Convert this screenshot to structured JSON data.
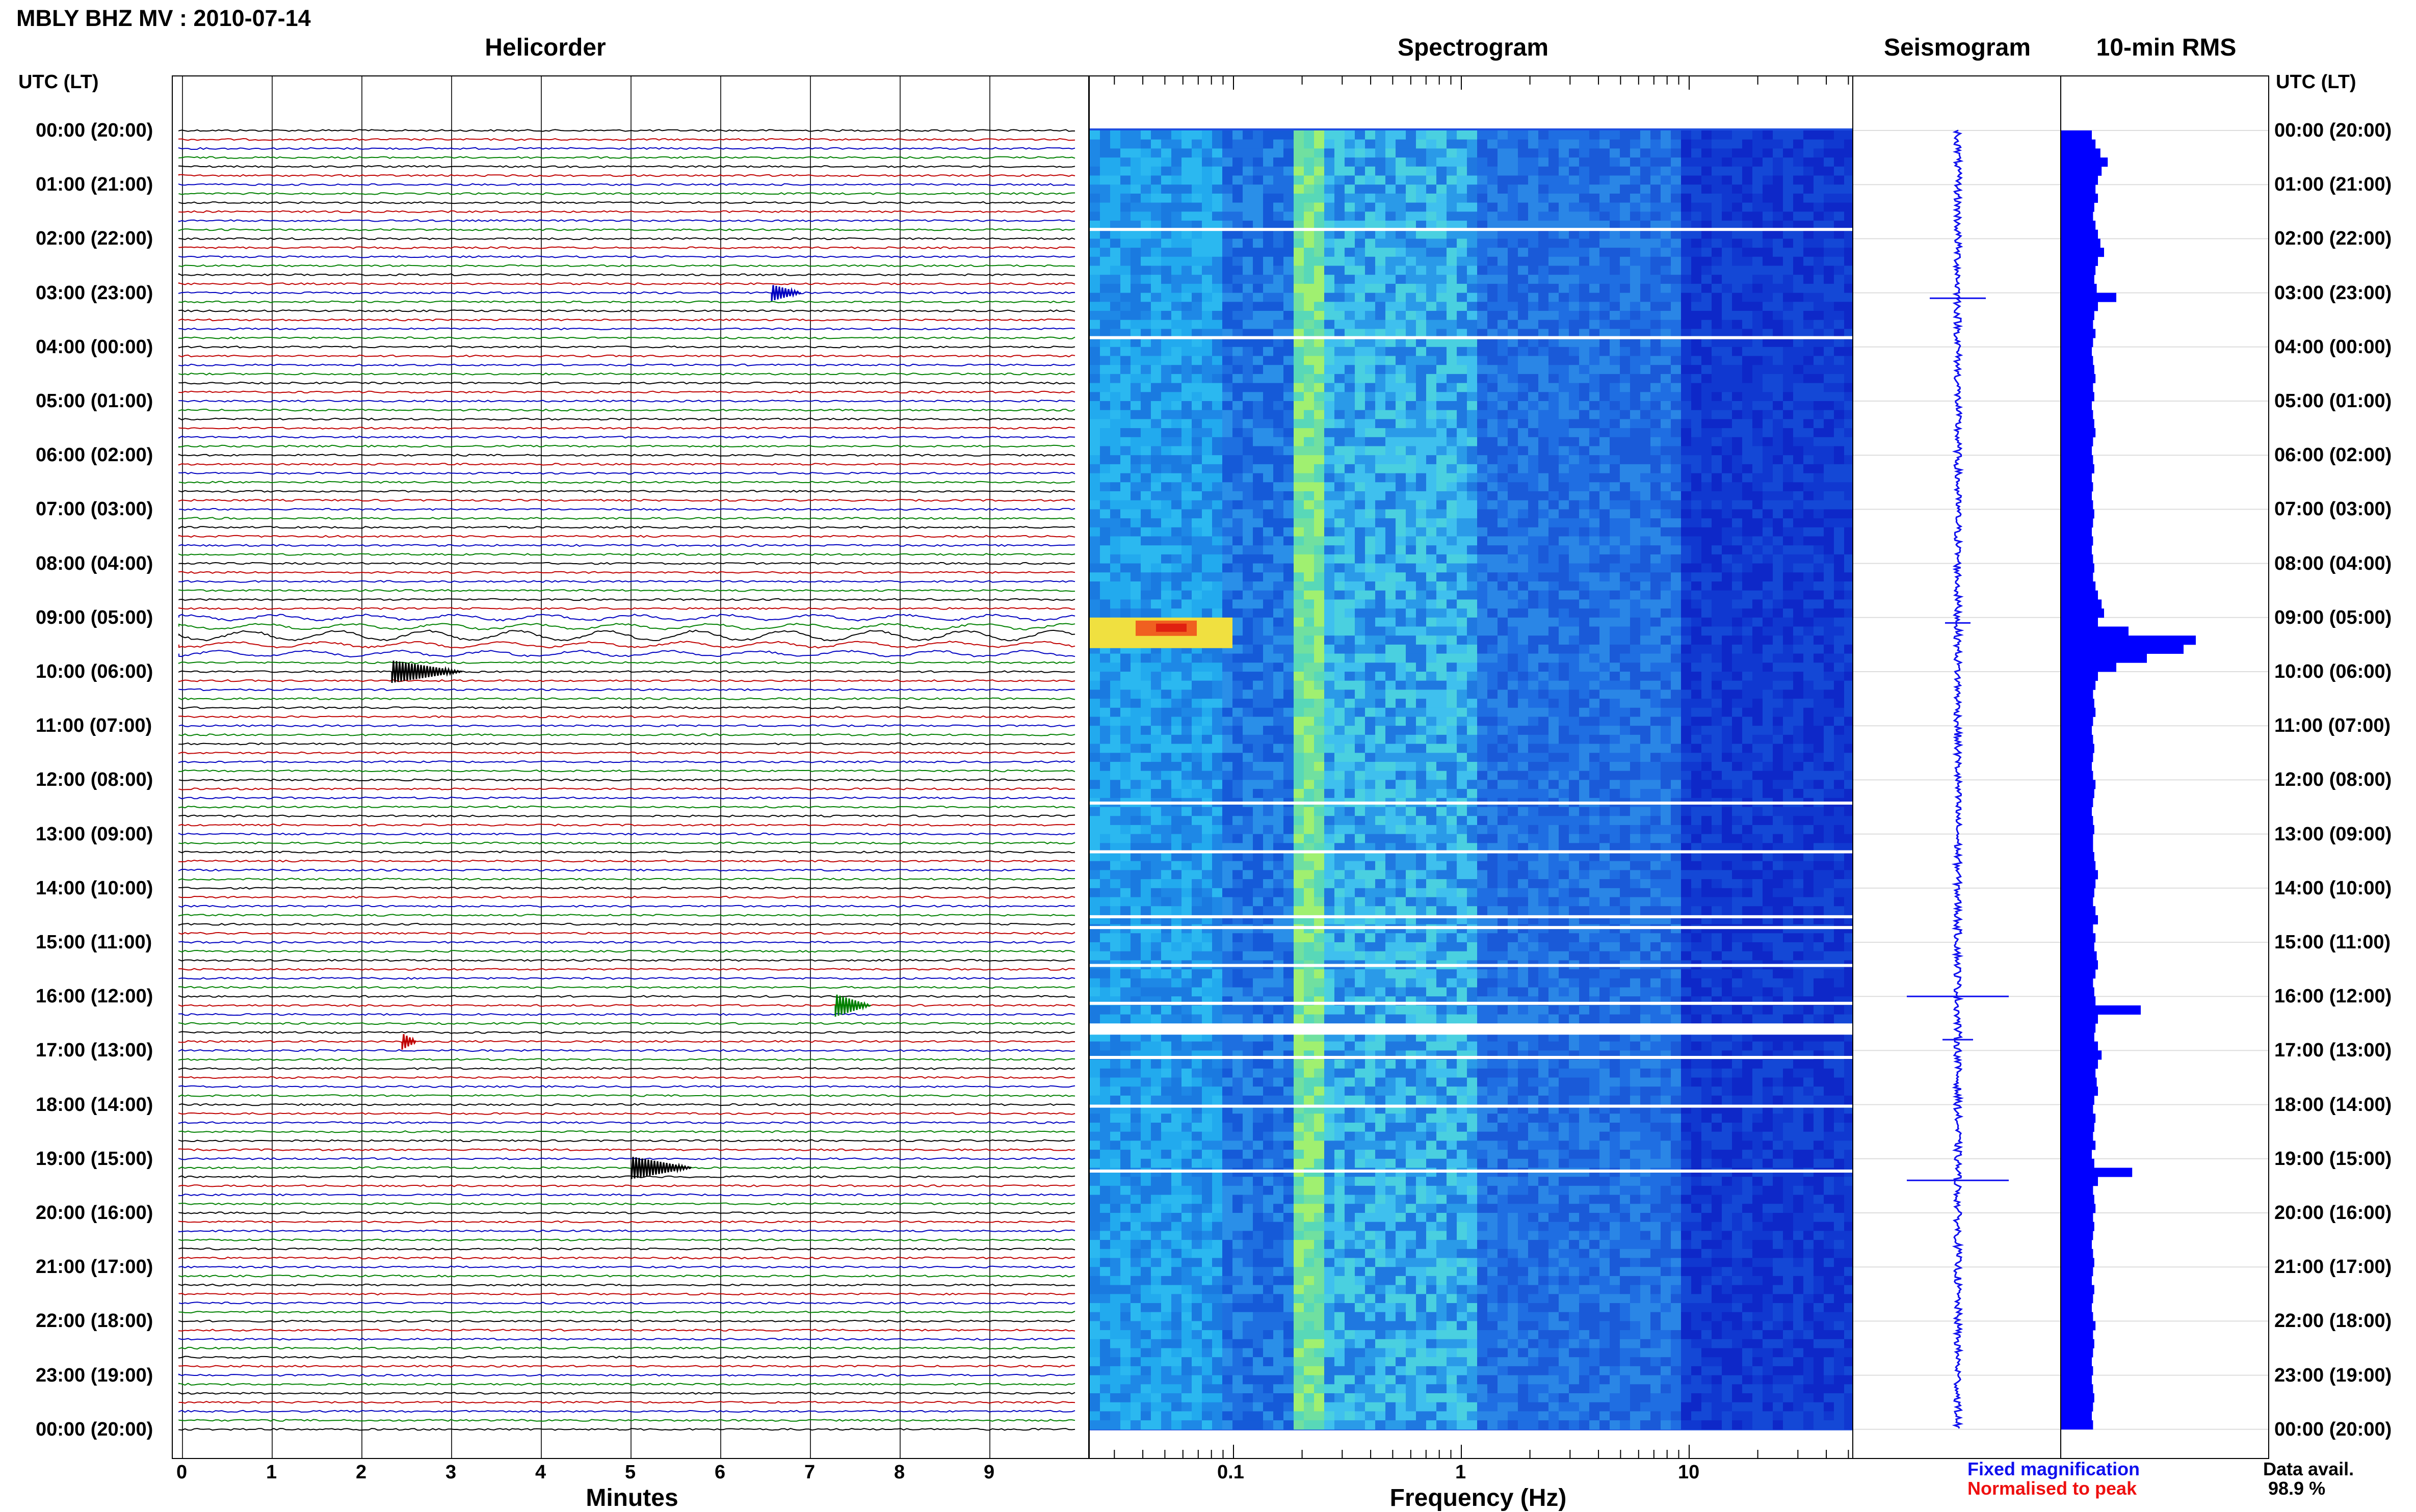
{
  "header": {
    "title": "MBLY BHZ MV : 2010-07-14"
  },
  "panels": {
    "helicorder": "Helicorder",
    "spectrogram": "Spectrogram",
    "seismogram": "Seismogram",
    "rms": "10-min RMS"
  },
  "axis": {
    "utc_label": "UTC (LT)",
    "time_labels": [
      "00:00 (20:00)",
      "01:00 (21:00)",
      "02:00 (22:00)",
      "03:00 (23:00)",
      "04:00 (00:00)",
      "05:00 (01:00)",
      "06:00 (02:00)",
      "07:00 (03:00)",
      "08:00 (04:00)",
      "09:00 (05:00)",
      "10:00 (06:00)",
      "11:00 (07:00)",
      "12:00 (08:00)",
      "13:00 (09:00)",
      "14:00 (10:00)",
      "15:00 (11:00)",
      "16:00 (12:00)",
      "17:00 (13:00)",
      "18:00 (14:00)",
      "19:00 (15:00)",
      "20:00 (16:00)",
      "21:00 (17:00)",
      "22:00 (18:00)",
      "23:00 (19:00)",
      "00:00 (20:00)"
    ],
    "minutes_ticks": [
      "0",
      "1",
      "2",
      "3",
      "4",
      "5",
      "6",
      "7",
      "8",
      "9"
    ],
    "minutes_label": "Minutes",
    "freq_ticks": [
      "0.1",
      "1",
      "10"
    ],
    "freq_label": "Frequency (Hz)"
  },
  "legend": {
    "fixed": "Fixed magnification",
    "normalised": "Normalised to peak",
    "fixed_color": "#1010ee",
    "normalised_color": "#ee1010"
  },
  "data_avail": {
    "label": "Data avail.",
    "value": "98.9 %"
  },
  "colors": {
    "trace_cycle": [
      "#000000",
      "#c00000",
      "#0000c0",
      "#008000"
    ],
    "rms_bar": "#0000ff",
    "seis": "#1010ee"
  },
  "events": [
    {
      "time_utc": "03:00",
      "minute": 6.7,
      "trace_color": "blue"
    },
    {
      "time_utc": "09:00",
      "minute": 0,
      "trace_color": "teleseism"
    },
    {
      "time_utc": "10:00",
      "minute": 2.8,
      "trace_color": "black"
    },
    {
      "time_utc": "16:00",
      "minute": 7.4,
      "trace_color": "green"
    },
    {
      "time_utc": "16:40",
      "minute": 2.5,
      "trace_color": "red"
    },
    {
      "time_utc": "19:10",
      "minute": 5.3,
      "trace_color": "black"
    }
  ],
  "rms_levels": [
    0.25,
    0.28,
    0.32,
    0.38,
    0.33,
    0.3,
    0.28,
    0.3,
    0.27,
    0.26,
    0.28,
    0.3,
    0.32,
    0.35,
    0.3,
    0.28,
    0.27,
    0.29,
    0.45,
    0.3,
    0.27,
    0.26,
    0.28,
    0.26,
    0.25,
    0.26,
    0.27,
    0.28,
    0.26,
    0.27,
    0.25,
    0.26,
    0.27,
    0.28,
    0.26,
    0.25,
    0.26,
    0.27,
    0.25,
    0.26,
    0.25,
    0.26,
    0.27,
    0.26,
    0.25,
    0.26,
    0.25,
    0.26,
    0.27,
    0.26,
    0.28,
    0.3,
    0.33,
    0.35,
    0.3,
    0.55,
    1.1,
    1.0,
    0.7,
    0.45,
    0.3,
    0.28,
    0.26,
    0.27,
    0.28,
    0.26,
    0.25,
    0.26,
    0.27,
    0.26,
    0.25,
    0.26,
    0.28,
    0.27,
    0.26,
    0.25,
    0.26,
    0.27,
    0.26,
    0.26,
    0.27,
    0.28,
    0.3,
    0.28,
    0.27,
    0.26,
    0.28,
    0.3,
    0.26,
    0.28,
    0.27,
    0.29,
    0.3,
    0.28,
    0.26,
    0.27,
    0.28,
    0.65,
    0.3,
    0.28,
    0.27,
    0.3,
    0.33,
    0.3,
    0.28,
    0.29,
    0.3,
    0.27,
    0.26,
    0.28,
    0.27,
    0.26,
    0.28,
    0.25,
    0.27,
    0.58,
    0.3,
    0.26,
    0.27,
    0.28,
    0.26,
    0.27,
    0.26,
    0.25,
    0.26,
    0.27,
    0.26,
    0.25,
    0.27,
    0.26,
    0.25,
    0.26,
    0.28,
    0.26,
    0.27,
    0.26,
    0.25,
    0.26,
    0.25,
    0.26,
    0.27,
    0.26,
    0.25,
    0.26
  ]
}
